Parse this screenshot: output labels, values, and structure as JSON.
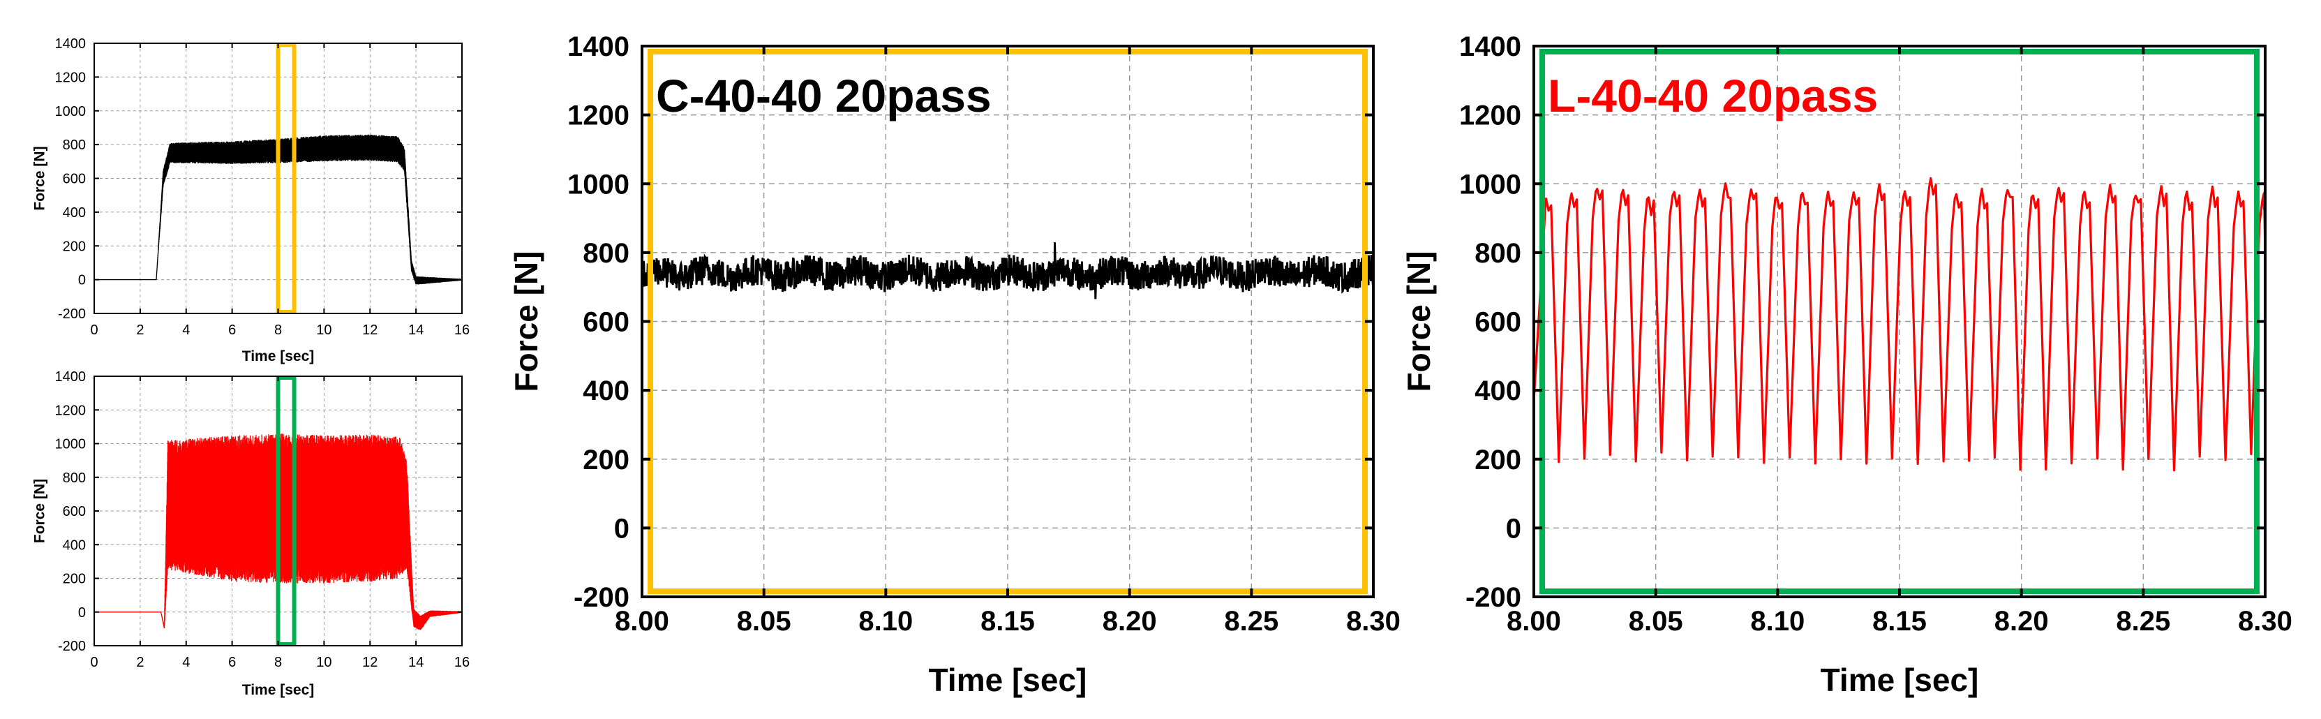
{
  "colors": {
    "black": "#000000",
    "red": "#ff0000",
    "yellow": "#ffc000",
    "green": "#00b050",
    "grid": "#9a9a9a"
  },
  "chart_data": [
    {
      "id": "small-top",
      "type": "line",
      "xlabel": "Time [sec]",
      "ylabel": "Force [N]",
      "xlim": [
        0,
        16
      ],
      "ylim": [
        -200,
        1400
      ],
      "xticks": [
        0,
        2,
        4,
        6,
        8,
        10,
        12,
        14,
        16
      ],
      "yticks": [
        -200,
        0,
        200,
        400,
        600,
        800,
        1000,
        1200,
        1400
      ],
      "grid": true,
      "series": [
        {
          "color": "#000000",
          "envelope": {
            "t": [
              0,
              2.7,
              3.0,
              3.3,
              6.0,
              8.0,
              10.0,
              12.0,
              13.2,
              13.5,
              13.8,
              14.0,
              16.0
            ],
            "upper": [
              0,
              0,
              650,
              810,
              820,
              835,
              855,
              860,
              850,
              780,
              120,
              20,
              5
            ],
            "lower": [
              0,
              0,
              550,
              690,
              685,
              690,
              700,
              705,
              695,
              640,
              50,
              -30,
              -5
            ]
          }
        }
      ],
      "highlight": {
        "color": "#ffc000",
        "x": [
          8.0,
          8.7
        ]
      }
    },
    {
      "id": "small-bottom",
      "type": "line",
      "xlabel": "Time [sec]",
      "ylabel": "Force [N]",
      "xlim": [
        0,
        16
      ],
      "ylim": [
        -200,
        1400
      ],
      "xticks": [
        0,
        2,
        4,
        6,
        8,
        10,
        12,
        14,
        16
      ],
      "yticks": [
        -200,
        0,
        200,
        400,
        600,
        800,
        1000,
        1200,
        1400
      ],
      "grid": true,
      "series": [
        {
          "color": "#ff0000",
          "envelope": {
            "t": [
              0,
              2.9,
              3.05,
              3.2,
              6.0,
              8.0,
              10.0,
              12.0,
              13.3,
              13.6,
              13.9,
              14.2,
              14.6,
              16.0
            ],
            "upper": [
              0,
              0,
              -80,
              1020,
              1050,
              1060,
              1050,
              1055,
              1040,
              900,
              20,
              -20,
              10,
              5
            ],
            "lower": [
              0,
              0,
              -100,
              250,
              180,
              170,
              170,
              180,
              200,
              260,
              -90,
              -110,
              -30,
              -5
            ]
          }
        }
      ],
      "highlight": {
        "color": "#00b050",
        "x": [
          8.0,
          8.7
        ]
      }
    },
    {
      "id": "main-c",
      "type": "line",
      "title": "C-40-40 20pass",
      "xlabel": "Time [sec]",
      "ylabel": "Force [N]",
      "xlim": [
        8.0,
        8.3
      ],
      "ylim": [
        -200,
        1400
      ],
      "xticks": [
        "8.00",
        "8.05",
        "8.10",
        "8.15",
        "8.20",
        "8.25",
        "8.30"
      ],
      "yticks": [
        -200,
        0,
        200,
        400,
        600,
        800,
        1000,
        1200,
        1400
      ],
      "grid": true,
      "frame_color": "#ffc000",
      "series": [
        {
          "color": "#000000",
          "band": {
            "mean": 740,
            "half_width": 45,
            "min": 665,
            "max": 830
          }
        }
      ]
    },
    {
      "id": "main-l",
      "type": "line",
      "title": "L-40-40 20pass",
      "xlabel": "Time [sec]",
      "ylabel": "Force [N]",
      "xlim": [
        8.0,
        8.3
      ],
      "ylim": [
        -200,
        1400
      ],
      "xticks": [
        "8.00",
        "8.05",
        "8.10",
        "8.15",
        "8.20",
        "8.25",
        "8.30"
      ],
      "yticks": [
        -200,
        0,
        200,
        400,
        600,
        800,
        1000,
        1200,
        1400
      ],
      "grid": true,
      "frame_color": "#00b050",
      "series": [
        {
          "color": "#ff0000",
          "oscillation": {
            "peak_times": [
              8.005,
              8.0155,
              8.026,
              8.0366,
              8.0471,
              8.0576,
              8.0681,
              8.0786,
              8.0891,
              8.0997,
              8.1102,
              8.1207,
              8.1312,
              8.1417,
              8.1522,
              8.1628,
              8.1733,
              8.1838,
              8.1943,
              8.2048,
              8.2153,
              8.2259,
              8.2364,
              8.2469,
              8.2574,
              8.2679,
              8.2784,
              8.289,
              8.2995
            ],
            "peaks": [
              960,
              975,
              990,
              975,
              960,
              985,
              980,
              990,
              985,
              970,
              975,
              965,
              980,
              990,
              985,
              1005,
              960,
              975,
              990,
              965,
              985,
              975,
              985,
              975,
              985,
              975,
              980,
              970,
              975
            ],
            "troughs": [
              360,
              180,
              200,
              205,
              200,
              210,
              195,
              205,
              215,
              185,
              210,
              190,
              200,
              185,
              210,
              175,
              195,
              200,
              210,
              180,
              165,
              185,
              190,
              180,
              200,
              160,
              200,
              195,
              210,
              190
            ]
          }
        }
      ]
    }
  ]
}
